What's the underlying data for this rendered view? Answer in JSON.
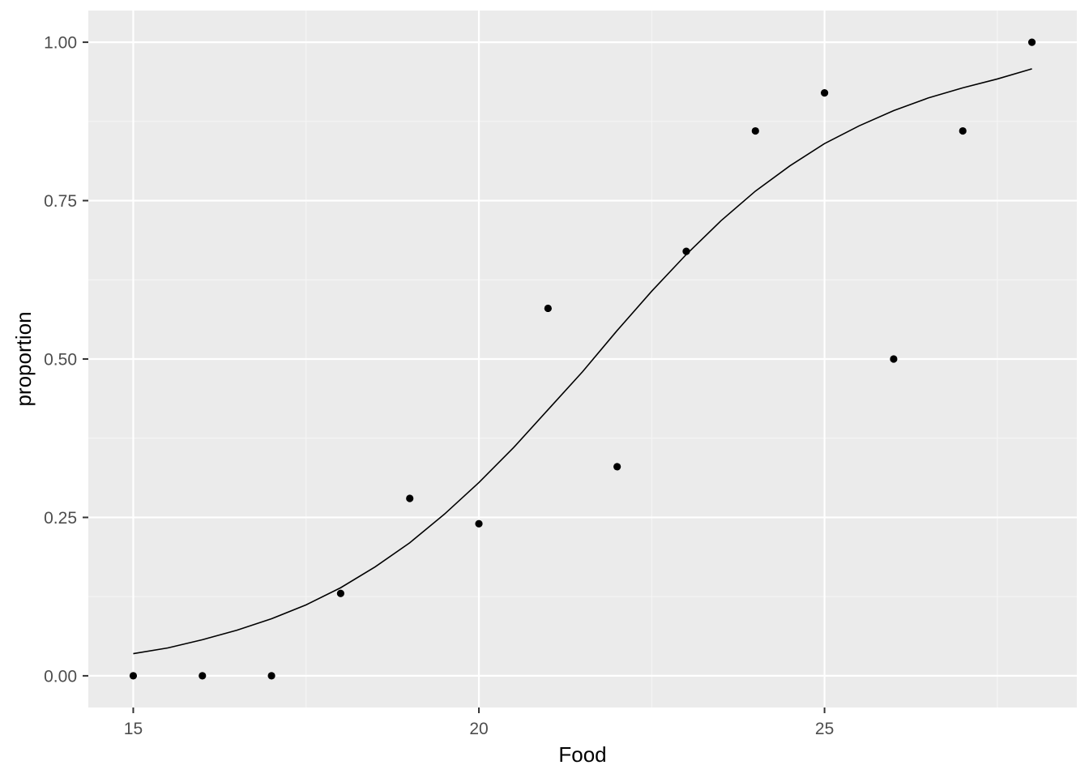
{
  "colors": {
    "panel_background": "#EBEBEB",
    "grid_major": "#FFFFFF",
    "grid_minor": "#F5F5F5",
    "tick_text": "#4D4D4D",
    "points": "#000000",
    "fit_line": "#000000"
  },
  "chart_data": {
    "type": "scatter",
    "xlabel": "Food",
    "ylabel": "proportion",
    "xlim": [
      14.35,
      28.65
    ],
    "ylim": [
      -0.05,
      1.05
    ],
    "x_ticks": [
      15,
      20,
      25
    ],
    "x_tick_labels": [
      "15",
      "20",
      "25"
    ],
    "x_minor_ticks": [
      17.5,
      22.5,
      27.5
    ],
    "y_ticks": [
      0,
      0.25,
      0.5,
      0.75,
      1.0
    ],
    "y_tick_labels": [
      "0.00",
      "0.25",
      "0.50",
      "0.75",
      "1.00"
    ],
    "y_minor_ticks": [
      0.125,
      0.375,
      0.625,
      0.875
    ],
    "grid": true,
    "legend": "none",
    "series": [
      {
        "kind": "points",
        "x": [
          15,
          16,
          17,
          18,
          19,
          20,
          21,
          22,
          23,
          24,
          25,
          26,
          27,
          28
        ],
        "y": [
          0.0,
          0.0,
          0.0,
          0.13,
          0.28,
          0.24,
          0.58,
          0.33,
          0.67,
          0.86,
          0.92,
          0.5,
          0.86,
          1.0
        ]
      },
      {
        "kind": "line",
        "x": [
          15,
          15.5,
          16,
          16.5,
          17,
          17.5,
          18,
          18.5,
          19,
          19.5,
          20,
          20.5,
          21,
          21.5,
          22,
          22.5,
          23,
          23.5,
          24,
          24.5,
          25,
          25.5,
          26,
          26.5,
          27,
          27.5,
          28
        ],
        "y": [
          0.035,
          0.044,
          0.057,
          0.072,
          0.09,
          0.112,
          0.139,
          0.172,
          0.21,
          0.255,
          0.305,
          0.36,
          0.42,
          0.48,
          0.545,
          0.607,
          0.665,
          0.718,
          0.765,
          0.805,
          0.84,
          0.868,
          0.892,
          0.912,
          0.928,
          0.942,
          0.958
        ]
      }
    ]
  }
}
